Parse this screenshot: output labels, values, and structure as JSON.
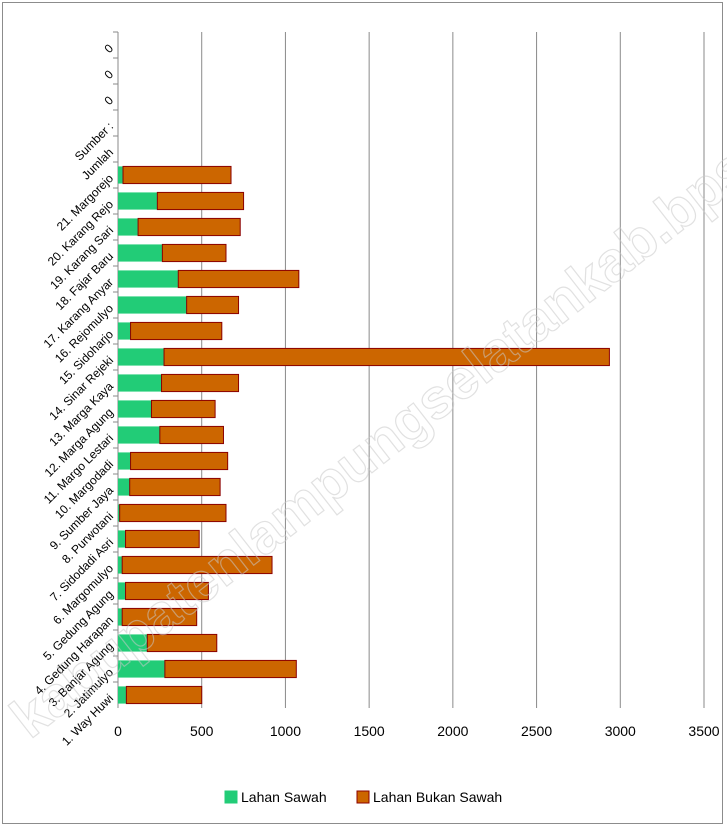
{
  "watermark": "kabupatenlampungselatankab.bps.go.id",
  "chart_data": {
    "type": "bar",
    "orientation": "horizontal",
    "stacked": true,
    "categories": [
      "1. Way Huwi",
      "2. Jatimulyo",
      "3. Banjar Agung",
      "4. Gedung Harapan",
      "5. Gedung Agung",
      "6. Margomulyo",
      "7. Sidodadi Asri",
      "8. Purwotani",
      "9. Sumber Jaya",
      "10. Margodadi",
      "11. Margo Lestari",
      "12. Marga Agung",
      "13. Marga Kaya",
      "14. Sinar Rejeki",
      "15. Sidoharjo",
      "16. Rejomulyo",
      "17. Karang Anyar",
      "18. Fajar Baru",
      "19. Karang Sari",
      "20. Karang Rejo",
      "21. Margorejo",
      "Jumlah",
      "Sumber :",
      "0",
      "0",
      "0"
    ],
    "series": [
      {
        "name": "Lahan Sawah",
        "color": "#22cc77",
        "values": [
          50,
          280,
          175,
          25,
          45,
          25,
          45,
          10,
          70,
          75,
          250,
          200,
          260,
          275,
          75,
          410,
          360,
          265,
          120,
          235,
          30,
          0,
          0,
          0,
          0,
          0
        ]
      },
      {
        "name": "Lahan Bukan Sawah",
        "color": "#cc6600",
        "values": [
          450,
          785,
          415,
          445,
          495,
          895,
          440,
          635,
          540,
          580,
          380,
          380,
          460,
          2660,
          545,
          310,
          720,
          380,
          610,
          515,
          645,
          0,
          0,
          0,
          0,
          0
        ]
      }
    ],
    "xlim": [
      0,
      3500
    ],
    "xticks": [
      "0",
      "500",
      "1000",
      "1500",
      "2000",
      "2500",
      "3000",
      "3500"
    ],
    "grid": true,
    "legend": "bottom"
  }
}
